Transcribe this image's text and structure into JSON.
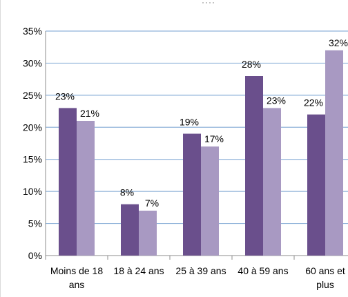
{
  "chart_data": {
    "type": "bar",
    "categories": [
      [
        "Moins de 18",
        "ans"
      ],
      [
        "18 à 24 ans"
      ],
      [
        "25 à 39 ans"
      ],
      [
        "40 à 59 ans"
      ],
      [
        "60 ans et",
        "plus"
      ]
    ],
    "series": [
      {
        "values": [
          23,
          8,
          19,
          28,
          22
        ],
        "labels": [
          "23%",
          "8%",
          "19%",
          "28%",
          "22%"
        ],
        "color": "#6a4f8c"
      },
      {
        "values": [
          21,
          7,
          17,
          23,
          32
        ],
        "labels": [
          "21%",
          "7%",
          "17%",
          "23%",
          "32%"
        ],
        "color": "#a899c2"
      }
    ],
    "ylim": [
      0,
      35
    ],
    "yticks": [
      "0%",
      "5%",
      "10%",
      "15%",
      "20%",
      "25%",
      "30%",
      "35%"
    ],
    "grid": true,
    "gridColor": "#8fb2d9",
    "axisColor": "#8c8c8c"
  }
}
